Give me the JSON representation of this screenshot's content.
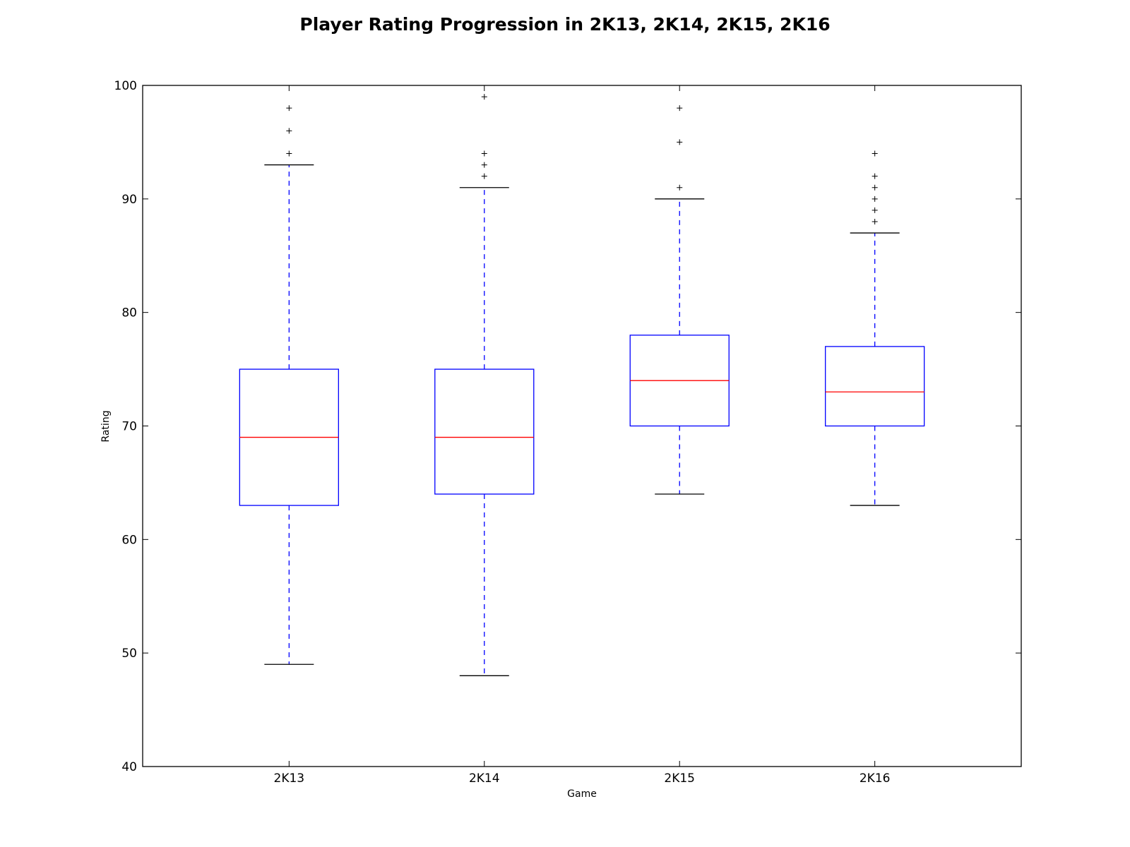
{
  "chart_data": {
    "type": "box",
    "title": "Player Rating Progression in 2K13, 2K14, 2K15, 2K16",
    "xlabel": "Game",
    "ylabel": "Rating",
    "ylim": [
      40,
      100
    ],
    "yticks": [
      "40",
      "50",
      "60",
      "70",
      "80",
      "90",
      "100"
    ],
    "grid": false,
    "categories": [
      "2K13",
      "2K14",
      "2K15",
      "2K16"
    ],
    "boxes": [
      {
        "category": "2K13",
        "whisker_low": 49,
        "q1": 63,
        "median": 69,
        "q3": 75,
        "whisker_high": 93,
        "outliers": [
          94,
          96,
          98
        ]
      },
      {
        "category": "2K14",
        "whisker_low": 48,
        "q1": 64,
        "median": 69,
        "q3": 75,
        "whisker_high": 91,
        "outliers": [
          92,
          93,
          94,
          99
        ]
      },
      {
        "category": "2K15",
        "whisker_low": 64,
        "q1": 70,
        "median": 74,
        "q3": 78,
        "whisker_high": 90,
        "outliers": [
          91,
          95,
          98
        ]
      },
      {
        "category": "2K16",
        "whisker_low": 63,
        "q1": 70,
        "median": 73,
        "q3": 77,
        "whisker_high": 87,
        "outliers": [
          88,
          89,
          90,
          91,
          92,
          94
        ]
      }
    ],
    "colors": {
      "box": "#0000ff",
      "median": "#ff0000",
      "whisker": "#0000ff",
      "cap": "#000000",
      "outlier": "#000000",
      "axes": "#000000"
    }
  }
}
